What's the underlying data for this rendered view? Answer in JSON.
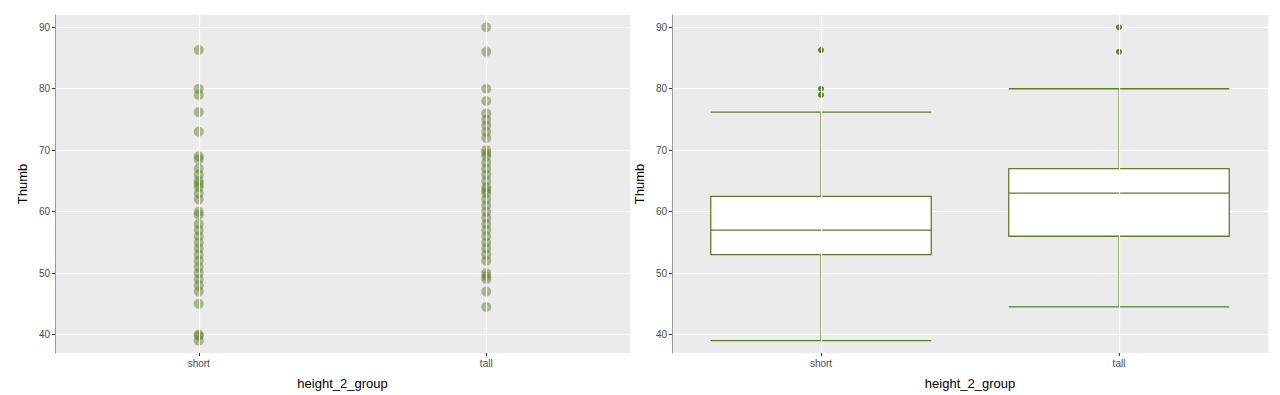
{
  "chart_data": [
    {
      "type": "scatter",
      "xlabel": "height_2_group",
      "ylabel": "Thumb",
      "categories": [
        "short",
        "tall"
      ],
      "values": [
        [
          86.3,
          80,
          79,
          76.2,
          73,
          69,
          68.5,
          67,
          66,
          65,
          64.5,
          64,
          63,
          62,
          60,
          59.5,
          58,
          57,
          56,
          55,
          54,
          53,
          52,
          51,
          50,
          49,
          48,
          47,
          45,
          40,
          39.8,
          39
        ],
        [
          90,
          86,
          80,
          78,
          76,
          75,
          74,
          73,
          72,
          70,
          69.5,
          69,
          68,
          67,
          66,
          65,
          64,
          63.5,
          63,
          62,
          61,
          60,
          59,
          58,
          57,
          56,
          55,
          54,
          53,
          52,
          50,
          49.5,
          49,
          47,
          44.5
        ]
      ],
      "color": "#5d7f2b",
      "ylim": [
        37,
        92
      ],
      "yticks": [
        40,
        50,
        60,
        70,
        80,
        90
      ],
      "grid": true
    },
    {
      "type": "boxplot",
      "xlabel": "height_2_group",
      "ylabel": "Thumb",
      "categories": [
        "short",
        "tall"
      ],
      "boxes": [
        [
          39,
          53,
          57,
          62.5,
          76.2
        ],
        [
          44.5,
          56,
          63,
          67,
          80
        ]
      ],
      "outliers": [
        [
          79,
          80,
          86.3
        ],
        [
          86,
          90
        ]
      ],
      "color": "#5d7f2b",
      "ylim": [
        37,
        92
      ],
      "yticks": [
        40,
        50,
        60,
        70,
        80,
        90
      ],
      "grid": true
    }
  ]
}
